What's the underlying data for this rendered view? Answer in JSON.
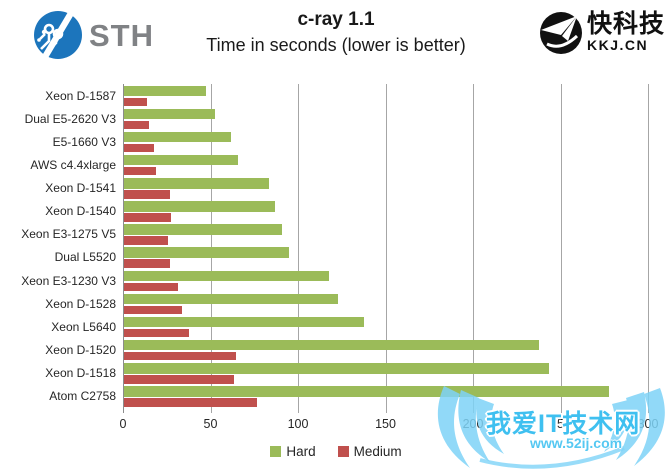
{
  "header": {
    "sth_logo_text": "STH",
    "kkj_logo_name": "快科技",
    "kkj_logo_domain": "KKJ.CN",
    "title": "c-ray 1.1",
    "subtitle": "Time in seconds (lower is better)"
  },
  "chart_data": {
    "type": "bar",
    "orientation": "horizontal",
    "title": "c-ray 1.1",
    "subtitle": "Time in seconds (lower is better)",
    "categories": [
      "Xeon D-1587",
      "Dual E5-2620 V3",
      "E5-1660 V3",
      "AWS c4.4xlarge",
      "Xeon D-1541",
      "Xeon D-1540",
      "Xeon E3-1275 V5",
      "Dual L5520",
      "Xeon E3-1230 V3",
      "Xeon D-1528",
      "Xeon L5640",
      "Xeon D-1520",
      "Xeon D-1518",
      "Atom C2758"
    ],
    "series": [
      {
        "name": "Hard",
        "color": "#9BBB59",
        "values": [
          47,
          52,
          61,
          65,
          83,
          86,
          90,
          94,
          117,
          122,
          137,
          237,
          243,
          277
        ]
      },
      {
        "name": "Medium",
        "color": "#C0504D",
        "values": [
          13,
          14,
          17,
          18,
          26,
          27,
          25,
          26,
          31,
          33,
          37,
          64,
          63,
          76
        ]
      }
    ],
    "xlabel": "",
    "ylabel": "",
    "xlim": [
      0,
      300
    ],
    "x_ticks": [
      0,
      50,
      100,
      150,
      200,
      250,
      300
    ],
    "grid": true,
    "legend_position": "bottom-center",
    "gridline_color": "#a6a6a6",
    "label_color": "#262626"
  },
  "watermark": {
    "site_name": "我爱IT技术网",
    "url": "www.52ij.com",
    "color": "#3fc0f0"
  }
}
